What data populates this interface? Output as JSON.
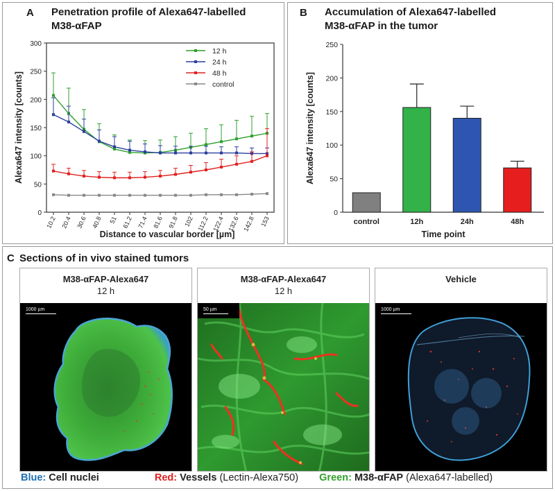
{
  "panelA": {
    "letter": "A",
    "title_line1": "Penetration profile of Alexa647-labelled",
    "title_line2": "M38-αFAP"
  },
  "panelB": {
    "letter": "B",
    "title_line1": "Accumulation of Alexa647-labelled",
    "title_line2": "M38-αFAP in the tumor"
  },
  "panelC": {
    "letter": "C",
    "title": "Sections of in vivo stained tumors",
    "images": [
      {
        "title": "M38-αFAP-Alexa647",
        "subtitle": "12 h",
        "scale": "1000 µm"
      },
      {
        "title": "M38-αFAP-Alexa647",
        "subtitle": "12 h",
        "scale": "50 µm"
      },
      {
        "title": "Vehicle",
        "subtitle": "",
        "scale": "1000 µm"
      }
    ],
    "legend": {
      "blue_key": "Blue",
      "blue_text": "Cell nuclei",
      "red_key": "Red",
      "red_text_bold": "Vessels",
      "red_text": "(Lectin-Alexa750)",
      "green_key": "Green",
      "green_text_bold": "M38-αFAP",
      "green_text": "(Alexa647-labelled)",
      "colors": {
        "blue": "#1f6fb0",
        "red": "#e02020",
        "green": "#33a02c"
      }
    }
  },
  "chart_data": [
    {
      "type": "line",
      "title": "Penetration profile of Alexa647-labelled M38-αFAP",
      "xlabel": "Distance to vascular border [µm]",
      "ylabel": "Alexa647 intensity [counts]",
      "ylim": [
        0,
        300
      ],
      "yticks": [
        0,
        50,
        100,
        150,
        200,
        250,
        300
      ],
      "x": [
        "10.2",
        "20.4",
        "30.6",
        "40.8",
        "51",
        "61.2",
        "71.4",
        "81.6",
        "91.8",
        "102",
        "112.2",
        "122.4",
        "132.6",
        "142.8",
        "153"
      ],
      "legend_position": "top-right",
      "series": [
        {
          "name": "12 h",
          "color": "#2ca02c",
          "values": [
            207,
            175,
            147,
            125,
            112,
            106,
            105,
            106,
            110,
            115,
            120,
            125,
            130,
            135,
            140
          ],
          "errors": [
            40,
            45,
            35,
            32,
            25,
            22,
            22,
            22,
            24,
            25,
            28,
            30,
            33,
            35,
            35
          ]
        },
        {
          "name": "24 h",
          "color": "#2a3f9d",
          "values": [
            173,
            160,
            143,
            126,
            116,
            110,
            107,
            105,
            105,
            105,
            105,
            105,
            105,
            104,
            104
          ],
          "errors": [
            30,
            28,
            22,
            20,
            18,
            16,
            14,
            13,
            12,
            12,
            12,
            11,
            11,
            10,
            10
          ]
        },
        {
          "name": "48 h",
          "color": "#e02020",
          "values": [
            73,
            68,
            64,
            62,
            61,
            61,
            62,
            64,
            67,
            71,
            75,
            80,
            85,
            90,
            100
          ],
          "errors": [
            12,
            10,
            10,
            10,
            10,
            10,
            10,
            10,
            11,
            12,
            13,
            14,
            15,
            17,
            48
          ]
        },
        {
          "name": "control",
          "color": "#888888",
          "values": [
            31,
            30,
            30,
            30,
            30,
            30,
            30,
            30,
            30,
            30,
            31,
            31,
            31,
            32,
            33
          ],
          "errors": [
            1,
            1,
            1,
            1,
            1,
            1,
            1,
            1,
            1,
            1,
            1,
            1,
            1,
            1,
            1
          ]
        }
      ]
    },
    {
      "type": "bar",
      "title": "Accumulation of Alexa647-labelled M38-αFAP in the tumor",
      "xlabel": "Time point",
      "ylabel": "Alexa647 intensity [counts]",
      "ylim": [
        0,
        250
      ],
      "yticks": [
        0,
        50,
        100,
        150,
        200,
        250
      ],
      "categories": [
        "control",
        "12h",
        "24h",
        "48h"
      ],
      "values": [
        29,
        156,
        140,
        66
      ],
      "errors": [
        0,
        35,
        18,
        10
      ],
      "colors": [
        "#808080",
        "#33b24a",
        "#2e56b0",
        "#e61e1e"
      ]
    }
  ]
}
